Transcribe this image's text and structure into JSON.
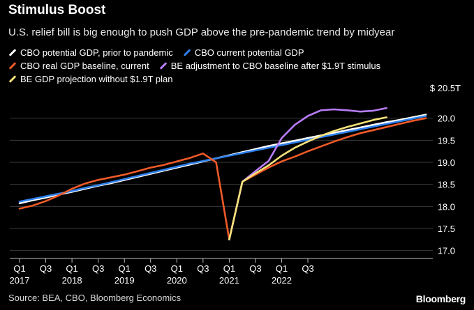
{
  "chart_data": {
    "type": "line",
    "title": "Stimulus Boost",
    "subtitle": "U.S. relief bill is big enough to push GDP above the pre-pandemic trend by midyear",
    "unit_label": "$ 20.5T",
    "x_ticks": [
      {
        "q": "Q1",
        "year": "2017"
      },
      {
        "q": "Q3",
        "year": ""
      },
      {
        "q": "Q1",
        "year": "2018"
      },
      {
        "q": "Q3",
        "year": ""
      },
      {
        "q": "Q1",
        "year": "2019"
      },
      {
        "q": "Q3",
        "year": ""
      },
      {
        "q": "Q1",
        "year": "2020"
      },
      {
        "q": "Q3",
        "year": ""
      },
      {
        "q": "Q1",
        "year": "2021"
      },
      {
        "q": "Q3",
        "year": ""
      },
      {
        "q": "Q1",
        "year": "2022"
      },
      {
        "q": "Q3",
        "year": ""
      }
    ],
    "ylim": [
      16.9,
      20.5
    ],
    "y_ticks": [
      17.0,
      17.5,
      18.0,
      18.5,
      19.0,
      19.5,
      20.0
    ],
    "grid": true,
    "series": [
      {
        "name": "CBO potential GDP, prior to pandemic",
        "color": "#ffffff",
        "start_q": 0,
        "values": [
          18.07,
          18.14,
          18.2,
          18.27,
          18.33,
          18.4,
          18.47,
          18.53,
          18.6,
          18.67,
          18.74,
          18.81,
          18.88,
          18.95,
          19.02,
          19.09,
          19.16,
          19.23,
          19.3,
          19.37,
          19.43,
          19.49,
          19.55,
          19.61,
          19.67,
          19.73,
          19.79,
          19.85,
          19.91,
          19.96,
          20.02,
          20.08
        ]
      },
      {
        "name": "CBO current potential GDP",
        "color": "#2f80ed",
        "start_q": 0,
        "values": [
          18.11,
          18.17,
          18.23,
          18.29,
          18.35,
          18.42,
          18.48,
          18.55,
          18.62,
          18.69,
          18.76,
          18.83,
          18.9,
          18.97,
          19.03,
          19.09,
          19.15,
          19.21,
          19.27,
          19.33,
          19.39,
          19.45,
          19.51,
          19.57,
          19.63,
          19.69,
          19.75,
          19.81,
          19.87,
          19.93,
          19.99,
          20.05
        ]
      },
      {
        "name": "CBO real GDP baseline, current",
        "color": "#f05a28",
        "start_q": 0,
        "values": [
          17.95,
          18.02,
          18.12,
          18.25,
          18.4,
          18.52,
          18.6,
          18.66,
          18.72,
          18.8,
          18.88,
          18.94,
          19.02,
          19.1,
          19.2,
          19.0,
          17.25,
          18.56,
          18.72,
          18.88,
          19.02,
          19.13,
          19.25,
          19.36,
          19.47,
          19.57,
          19.66,
          19.73,
          19.8,
          19.87,
          19.94,
          20.0
        ]
      },
      {
        "name": "BE adjustment to CBO baseline after $1.9T stimulus",
        "color": "#b77cf5",
        "start_q": 16,
        "values": [
          17.25,
          18.56,
          18.8,
          19.03,
          19.55,
          19.85,
          20.05,
          20.18,
          20.2,
          20.18,
          20.15,
          20.17,
          20.23
        ]
      },
      {
        "name": "BE GDP projection without $1.9T plan",
        "color": "#f5e27a",
        "start_q": 16,
        "values": [
          17.25,
          18.56,
          18.75,
          18.93,
          19.15,
          19.33,
          19.47,
          19.6,
          19.71,
          19.8,
          19.88,
          19.96,
          20.02
        ]
      }
    ]
  },
  "legend": {
    "rows": [
      [
        {
          "label": "CBO potential GDP, prior to pandemic",
          "color": "#ffffff"
        },
        {
          "label": "CBO current potential GDP",
          "color": "#2f80ed"
        }
      ],
      [
        {
          "label": "CBO real GDP baseline, current",
          "color": "#f05a28"
        },
        {
          "label": "BE adjustment to CBO baseline after $1.9T stimulus",
          "color": "#b77cf5"
        }
      ],
      [
        {
          "label": "BE GDP projection without $1.9T plan",
          "color": "#f5e27a"
        }
      ]
    ]
  },
  "footer": {
    "source": "Source: BEA, CBO, Bloomberg Economics",
    "brand": "Bloomberg"
  }
}
